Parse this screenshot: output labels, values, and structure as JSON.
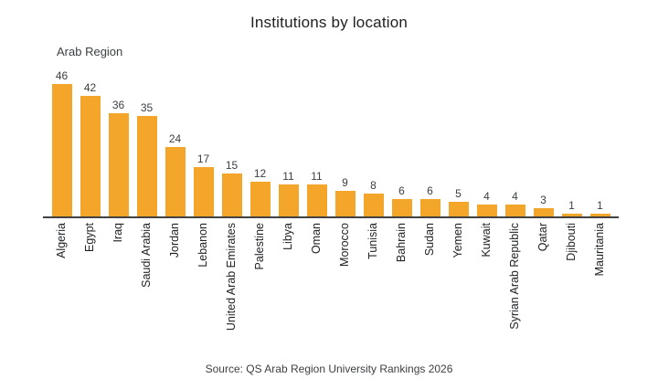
{
  "title": "Institutions by location",
  "region_label": "Arab Region",
  "source": "Source: QS Arab Region University Rankings 2026",
  "colors": {
    "bar": "#F4A62A",
    "axis": "#424242",
    "text": "#3C4043"
  },
  "chart_data": {
    "type": "bar",
    "title": "Institutions by location",
    "series_label": "Arab Region",
    "categories": [
      "Algeria",
      "Egypt",
      "Iraq",
      "Saudi Arabia",
      "Jordan",
      "Lebanon",
      "United Arab Emirates",
      "Palestine",
      "Libya",
      "Oman",
      "Morocco",
      "Tunisia",
      "Bahrain",
      "Sudan",
      "Yemen",
      "Kuwait",
      "Syrian Arab Republic",
      "Qatar",
      "Djibouti",
      "Mauritania"
    ],
    "values": [
      46,
      42,
      36,
      35,
      24,
      17,
      15,
      12,
      11,
      11,
      9,
      8,
      6,
      6,
      5,
      4,
      4,
      3,
      1,
      1
    ],
    "ylim": [
      0,
      46
    ],
    "bar_color": "#F4A62A",
    "grid": false,
    "value_labels": true,
    "legend_position": "none",
    "xlabel": "",
    "ylabel": "",
    "source": "Source: QS Arab Region University Rankings 2026"
  }
}
